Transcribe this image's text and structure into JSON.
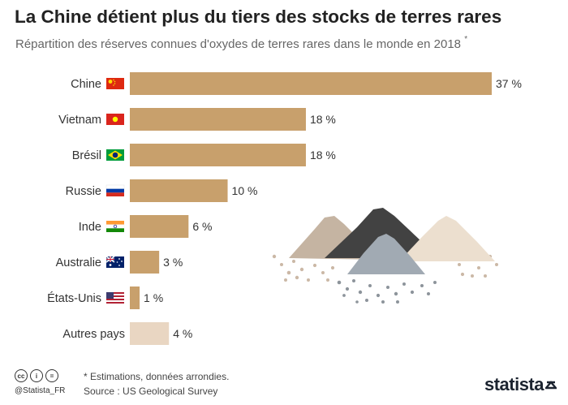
{
  "header": {
    "title": "La Chine détient plus du tiers des stocks de terres rares",
    "subtitle": "Répartition des réserves connues d'oxydes de terres rares dans le monde en 2018",
    "subtitle_mark": "*"
  },
  "chart_data": {
    "type": "bar",
    "orientation": "horizontal",
    "title": "La Chine détient plus du tiers des stocks de terres rares",
    "subtitle": "Répartition des réserves connues d'oxydes de terres rares dans le monde en 2018 *",
    "categories": [
      "Chine",
      "Vietnam",
      "Brésil",
      "Russie",
      "Inde",
      "Australie",
      "États-Unis",
      "Autres pays"
    ],
    "values": [
      37,
      18,
      18,
      10,
      6,
      3,
      1,
      4
    ],
    "value_labels": [
      "37 %",
      "18 %",
      "18 %",
      "10 %",
      "6 %",
      "3 %",
      "1 %",
      "4 %"
    ],
    "unit": "%",
    "flags": [
      "flag-china-icon",
      "flag-vietnam-icon",
      "flag-brazil-icon",
      "flag-russia-icon",
      "flag-india-icon",
      "flag-australia-icon",
      "flag-usa-icon",
      null
    ],
    "colors": {
      "bar": "#c8a06c",
      "bar_other": "#e9d6c2"
    },
    "grid": false,
    "legend": "none"
  },
  "footer": {
    "note": "* Estimations, données arrondies.",
    "source": "Source : US Geological Survey",
    "handle": "@Statista_FR",
    "brand": "statista",
    "license_icons": [
      "cc-icon",
      "by-icon",
      "nd-icon"
    ]
  }
}
